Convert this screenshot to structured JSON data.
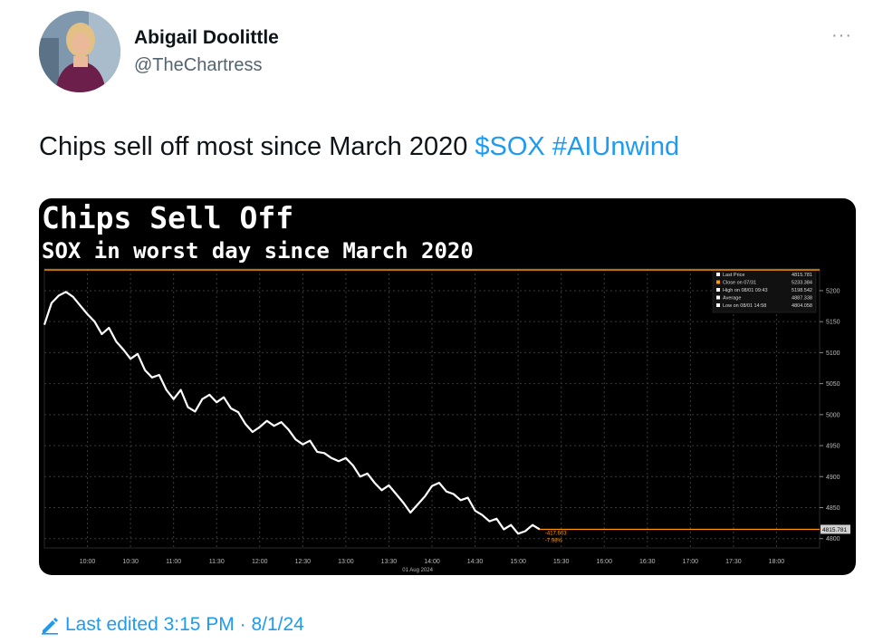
{
  "author": {
    "name": "Abigail Doolittle",
    "handle": "@TheChartress"
  },
  "tweet": {
    "text_prefix": "Chips sell off most since March 2020 ",
    "cashtag": "$SOX",
    "hashtag": "#AIUnwind"
  },
  "edit_info": {
    "label": "Last edited 3:15 PM · 8/1/24"
  },
  "more_label": "···",
  "colors": {
    "link": "#1d9bf0",
    "chart_bg": "#000000",
    "price_line": "#ffffff",
    "close_line": "#ff9900"
  },
  "icons": {
    "more": "more-dots-icon",
    "edit": "pencil-icon"
  },
  "chart_data": {
    "type": "line",
    "title": "Chips Sell Off",
    "subtitle": "SOX in worst day since March 2020",
    "x_ticks": [
      "10:00",
      "10:30",
      "11:00",
      "11:30",
      "12:00",
      "12:30",
      "13:00",
      "13:30",
      "14:00",
      "14:30",
      "15:00",
      "15:30",
      "16:00",
      "16:30",
      "17:00",
      "17:30",
      "18:00"
    ],
    "x_sublabel": "01 Aug 2024",
    "y_ticks": [
      5200,
      5150,
      5100,
      5050,
      5000,
      4950,
      4900,
      4850,
      4800
    ],
    "ylim": [
      4785,
      5235
    ],
    "close_value": 5233.384,
    "last_price_label": "4815.781",
    "change_labels": [
      "-417.603",
      "-7.98%"
    ],
    "legend": [
      {
        "label": "Last Price",
        "value": "4815.781"
      },
      {
        "label": "Close on 07/31",
        "value": "5233.384"
      },
      {
        "label": "High on 08/01 09:43",
        "value": "5198.542"
      },
      {
        "label": "Average",
        "value": "4887.338"
      },
      {
        "label": "Low on 08/01 14:58",
        "value": "4804.058"
      }
    ],
    "series": [
      {
        "x": [
          "09:30",
          "09:35",
          "09:40",
          "09:45",
          "09:50",
          "09:55",
          "10:00",
          "10:05",
          "10:10",
          "10:15",
          "10:20",
          "10:25",
          "10:30",
          "10:35",
          "10:40",
          "10:45",
          "10:50",
          "10:55",
          "11:00",
          "11:05",
          "11:10",
          "11:15",
          "11:20",
          "11:25",
          "11:30",
          "11:35",
          "11:40",
          "11:45",
          "11:50",
          "11:55",
          "12:00",
          "12:05",
          "12:10",
          "12:15",
          "12:20",
          "12:25",
          "12:30",
          "12:35",
          "12:40",
          "12:45",
          "12:50",
          "12:55",
          "13:00",
          "13:05",
          "13:10",
          "13:15",
          "13:20",
          "13:25",
          "13:30",
          "13:35",
          "13:40",
          "13:45",
          "13:50",
          "13:55",
          "14:00",
          "14:05",
          "14:10",
          "14:15",
          "14:20",
          "14:25",
          "14:30",
          "14:35",
          "14:40",
          "14:45",
          "14:50",
          "14:55",
          "15:00",
          "15:05",
          "15:10",
          "15:15"
        ],
        "values": [
          5145,
          5180,
          5192,
          5198,
          5190,
          5176,
          5162,
          5150,
          5130,
          5140,
          5118,
          5105,
          5090,
          5098,
          5072,
          5060,
          5064,
          5040,
          5025,
          5040,
          5012,
          5005,
          5025,
          5032,
          5020,
          5028,
          5010,
          5004,
          4985,
          4972,
          4980,
          4990,
          4982,
          4988,
          4976,
          4960,
          4952,
          4958,
          4940,
          4938,
          4930,
          4925,
          4930,
          4918,
          4900,
          4905,
          4890,
          4878,
          4886,
          4872,
          4858,
          4842,
          4855,
          4868,
          4885,
          4890,
          4876,
          4872,
          4862,
          4866,
          4845,
          4838,
          4828,
          4832,
          4815,
          4822,
          4808,
          4812,
          4822,
          4815
        ]
      }
    ]
  }
}
